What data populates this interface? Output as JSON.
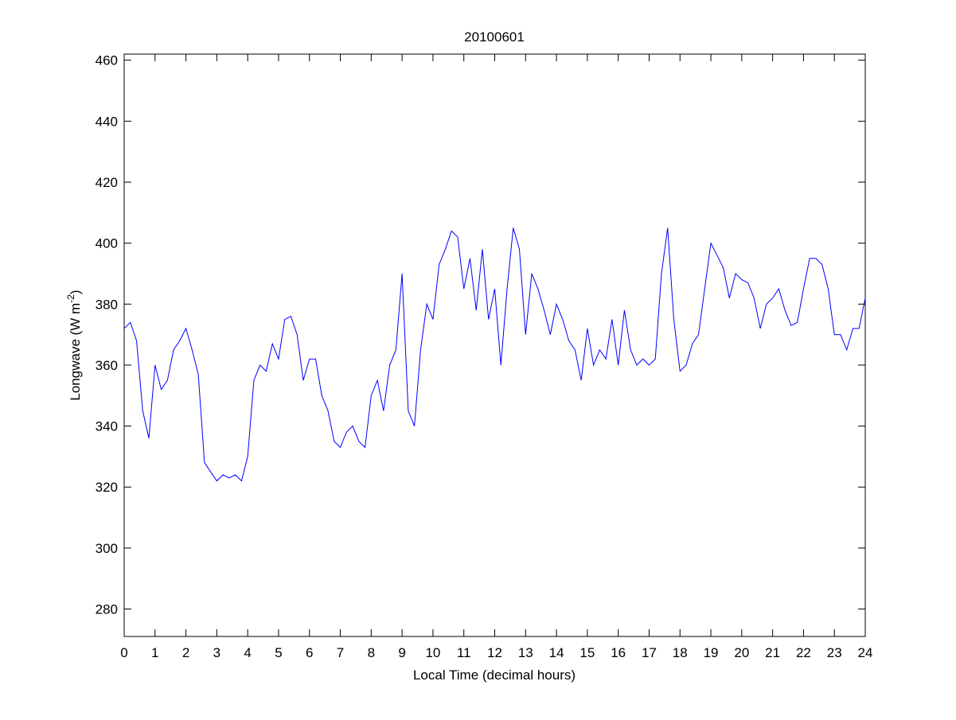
{
  "chart_data": {
    "type": "line",
    "title": "20100601",
    "xlabel": "Local Time (decimal hours)",
    "ylabel_parts": [
      "Longwave (W m",
      "-2",
      ")"
    ],
    "color": "#0000ff",
    "grid": false,
    "xlim": [
      0,
      24
    ],
    "xticks": [
      0,
      1,
      2,
      3,
      4,
      5,
      6,
      7,
      8,
      9,
      10,
      11,
      12,
      13,
      14,
      15,
      16,
      17,
      18,
      19,
      20,
      21,
      22,
      23,
      24
    ],
    "ylim": [
      271,
      462
    ],
    "yticks": [
      280,
      300,
      320,
      340,
      360,
      380,
      400,
      420,
      440,
      460
    ],
    "x": [
      0,
      0.2,
      0.4,
      0.6,
      0.8,
      1,
      1.2,
      1.4,
      1.6,
      1.8,
      2,
      2.2,
      2.4,
      2.6,
      2.8,
      3,
      3.2,
      3.4,
      3.6,
      3.8,
      4,
      4.2,
      4.4,
      4.6,
      4.8,
      5,
      5.2,
      5.4,
      5.6,
      5.8,
      6,
      6.2,
      6.4,
      6.6,
      6.8,
      7,
      7.2,
      7.4,
      7.6,
      7.8,
      8,
      8.2,
      8.4,
      8.6,
      8.8,
      9,
      9.2,
      9.4,
      9.6,
      9.8,
      10,
      10.2,
      10.4,
      10.6,
      10.8,
      11,
      11.2,
      11.4,
      11.6,
      11.8,
      12,
      12.2,
      12.4,
      12.6,
      12.8,
      13,
      13.2,
      13.4,
      13.6,
      13.8,
      14,
      14.2,
      14.4,
      14.6,
      14.8,
      15,
      15.2,
      15.4,
      15.6,
      15.8,
      16,
      16.2,
      16.4,
      16.6,
      16.8,
      17,
      17.2,
      17.4,
      17.6,
      17.8,
      18,
      18.2,
      18.4,
      18.6,
      18.8,
      19,
      19.2,
      19.4,
      19.6,
      19.8,
      20,
      20.2,
      20.4,
      20.6,
      20.8,
      21,
      21.2,
      21.4,
      21.6,
      21.8,
      22,
      22.2,
      22.4,
      22.6,
      22.8,
      23,
      23.2,
      23.4,
      23.6,
      23.8,
      24
    ],
    "values": [
      372,
      374,
      368,
      345,
      336,
      360,
      352,
      355,
      365,
      368,
      372,
      365,
      357,
      328,
      325,
      322,
      324,
      323,
      324,
      322,
      330,
      355,
      360,
      358,
      367,
      362,
      375,
      376,
      370,
      355,
      362,
      362,
      350,
      345,
      335,
      333,
      338,
      340,
      335,
      333,
      350,
      355,
      345,
      360,
      365,
      390,
      345,
      340,
      365,
      380,
      375,
      393,
      398,
      404,
      402,
      385,
      395,
      378,
      398,
      375,
      385,
      360,
      385,
      405,
      398,
      370,
      390,
      385,
      378,
      370,
      380,
      375,
      368,
      365,
      355,
      372,
      360,
      365,
      362,
      375,
      360,
      378,
      365,
      360,
      362,
      360,
      362,
      390,
      405,
      375,
      358,
      360,
      367,
      370,
      385,
      400,
      396,
      392,
      382,
      390,
      388,
      387,
      382,
      372,
      380,
      382,
      385,
      378,
      373,
      374,
      385,
      395,
      395,
      393,
      385,
      370,
      370,
      365,
      372,
      372,
      382
    ]
  }
}
